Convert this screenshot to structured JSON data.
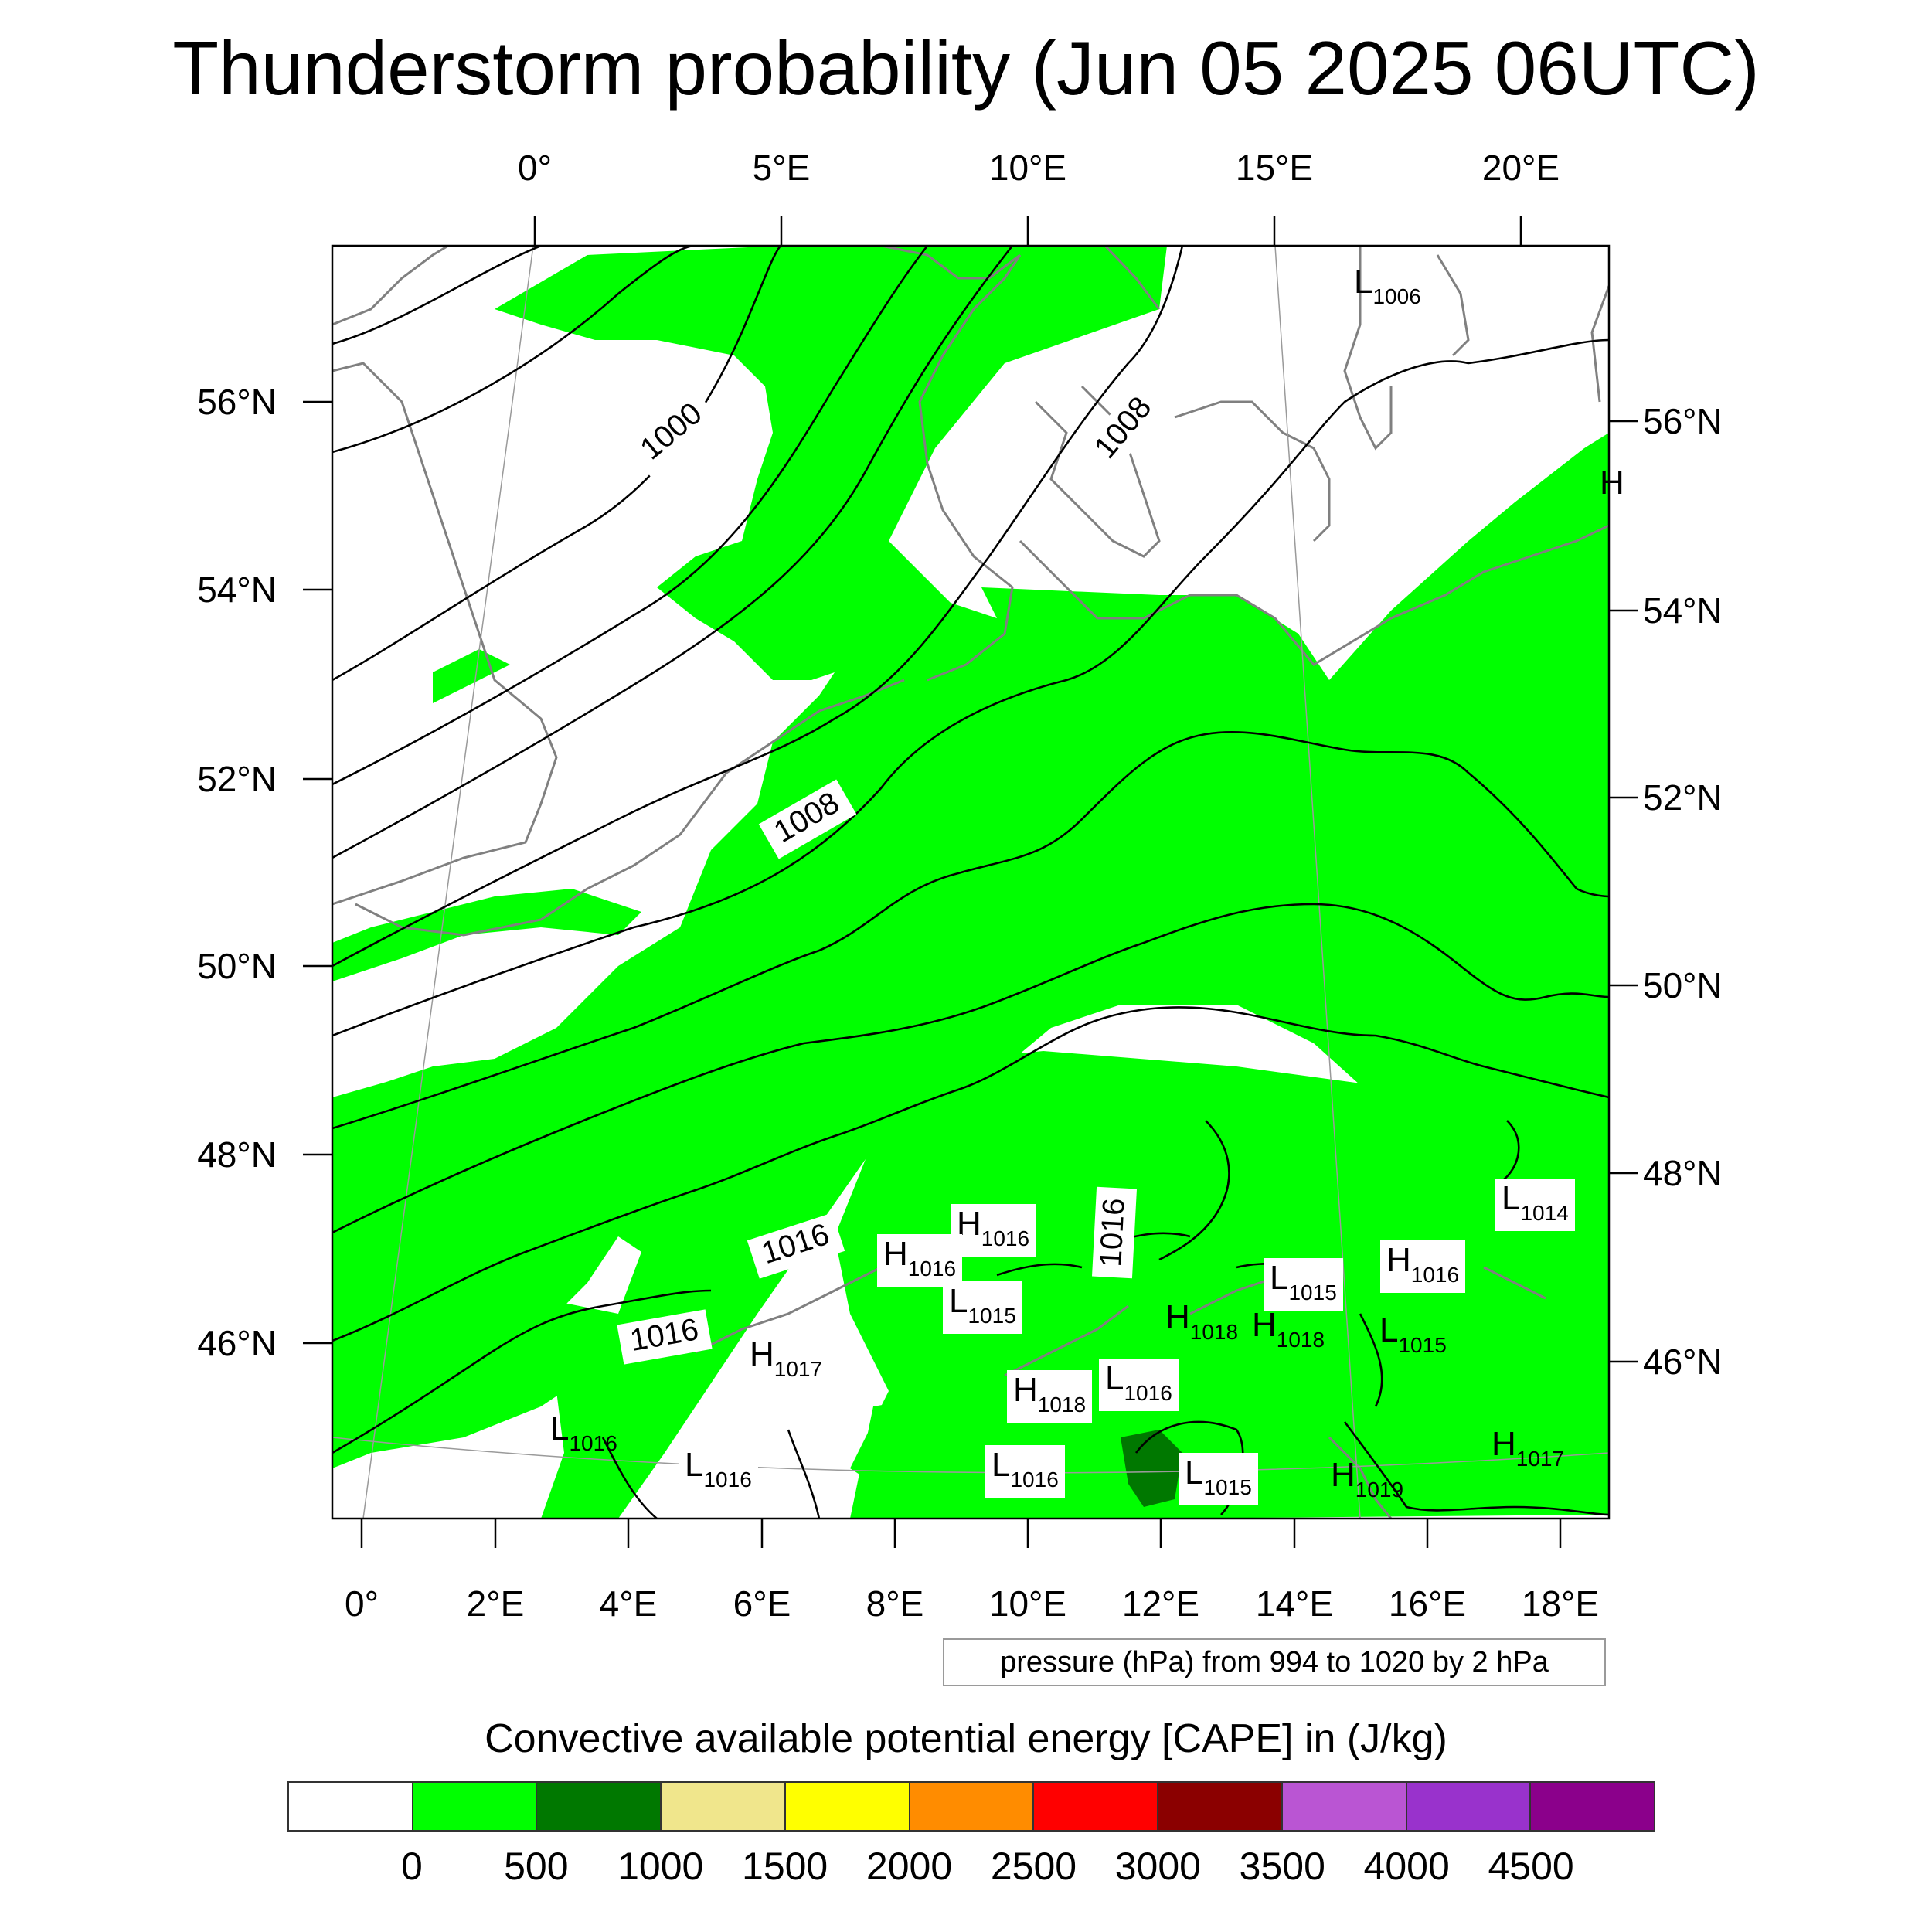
{
  "title": "Thunderstorm probability (Jun 05 2025 06UTC)",
  "top_longitudes": [
    "0°",
    "5°E",
    "10°E",
    "15°E",
    "20°E"
  ],
  "bottom_longitudes": [
    "0°",
    "2°E",
    "4°E",
    "6°E",
    "8°E",
    "10°E",
    "12°E",
    "14°E",
    "16°E",
    "18°E"
  ],
  "left_latitudes": [
    "56°N",
    "54°N",
    "52°N",
    "50°N",
    "48°N",
    "46°N"
  ],
  "right_latitudes": [
    "56°N",
    "54°N",
    "52°N",
    "50°N",
    "48°N",
    "46°N"
  ],
  "isobar_labels": [
    "1000",
    "1008",
    "1008",
    "1016",
    "1016",
    "1016"
  ],
  "pressure_systems": [
    {
      "letter": "L",
      "value": "1006"
    },
    {
      "letter": "H",
      "value": ""
    },
    {
      "letter": "L",
      "value": "1014"
    },
    {
      "letter": "H",
      "value": "1016"
    },
    {
      "letter": "H",
      "value": "1016"
    },
    {
      "letter": "L",
      "value": "1015"
    },
    {
      "letter": "L",
      "value": "1015"
    },
    {
      "letter": "H",
      "value": "1016"
    },
    {
      "letter": "H",
      "value": "1018"
    },
    {
      "letter": "H",
      "value": "1018"
    },
    {
      "letter": "L",
      "value": "1015"
    },
    {
      "letter": "H",
      "value": "1017"
    },
    {
      "letter": "H",
      "value": "1018"
    },
    {
      "letter": "L",
      "value": "1016"
    },
    {
      "letter": "L",
      "value": "1016"
    },
    {
      "letter": "L",
      "value": "1016"
    },
    {
      "letter": "L",
      "value": "1016"
    },
    {
      "letter": "L",
      "value": "1015"
    },
    {
      "letter": "H",
      "value": "1019"
    },
    {
      "letter": "H",
      "value": "1017"
    }
  ],
  "contour_note": "pressure (hPa) from 994 to 1020 by 2 hPa",
  "colorbar": {
    "title": "Convective available potential energy [CAPE] in (J/kg)",
    "colors": [
      "#ffffff",
      "#00ff00",
      "#007800",
      "#f0e68c",
      "#ffff00",
      "#ff8c00",
      "#ff0000",
      "#8b0000",
      "#ba55d3",
      "#9932cc",
      "#8b008b"
    ],
    "ticks": [
      "0",
      "500",
      "1000",
      "1500",
      "2000",
      "2500",
      "3000",
      "3500",
      "4000",
      "4500"
    ]
  },
  "colors": {
    "cape_0_500": "#00ff00",
    "cape_500_1000": "#007800",
    "isobar": "#000000",
    "coastline": "#808080"
  }
}
